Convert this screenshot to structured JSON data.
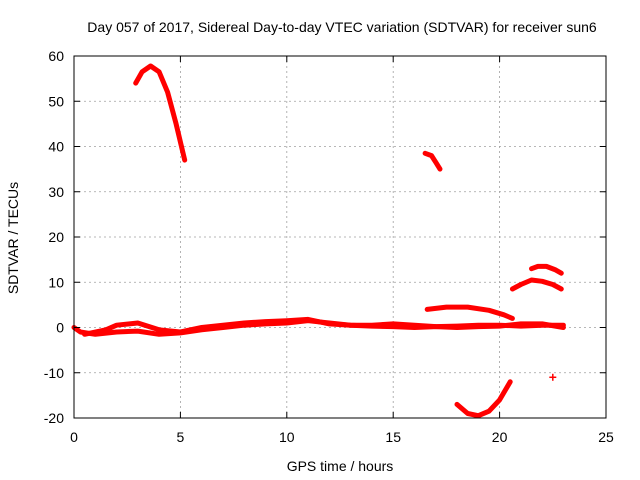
{
  "chart_data": {
    "type": "scatter",
    "title": "Day 057 of 2017, Sidereal Day-to-day VTEC variation (SDTVAR) for receiver sun6",
    "xlabel": "GPS time / hours",
    "ylabel": "SDTVAR / TECUs",
    "xlim": [
      0,
      25
    ],
    "ylim": [
      -20,
      60
    ],
    "xticks": [
      0,
      5,
      10,
      15,
      20,
      25
    ],
    "yticks": [
      -20,
      -10,
      0,
      10,
      20,
      30,
      40,
      50,
      60
    ],
    "grid": true,
    "marker_color": "#ff0000",
    "series": [
      {
        "name": "near-zero-track",
        "points": [
          [
            0,
            0
          ],
          [
            0.3,
            -1
          ],
          [
            1,
            -1.5
          ],
          [
            2,
            -1
          ],
          [
            3,
            -0.8
          ],
          [
            4,
            -1.5
          ],
          [
            5,
            -1.2
          ],
          [
            6,
            -0.5
          ],
          [
            7,
            0
          ],
          [
            8,
            0.5
          ],
          [
            9,
            0.8
          ],
          [
            10,
            1
          ],
          [
            11,
            1.5
          ],
          [
            12,
            1
          ],
          [
            13,
            0.5
          ],
          [
            14,
            0.3
          ],
          [
            15,
            0.2
          ],
          [
            16,
            0
          ],
          [
            17,
            0.2
          ],
          [
            18,
            0.3
          ],
          [
            19,
            0.5
          ],
          [
            20,
            0.5
          ],
          [
            21,
            0.3
          ],
          [
            22,
            0.5
          ],
          [
            23,
            0.5
          ]
        ]
      },
      {
        "name": "secondary-near-zero",
        "points": [
          [
            0.5,
            -1.5
          ],
          [
            1.5,
            -0.5
          ],
          [
            2,
            0.5
          ],
          [
            3,
            1
          ],
          [
            4,
            -0.5
          ],
          [
            5,
            -1
          ],
          [
            6,
            0
          ],
          [
            7,
            0.5
          ],
          [
            8,
            1
          ],
          [
            9,
            1.3
          ],
          [
            10,
            1.5
          ],
          [
            11,
            1.8
          ],
          [
            12,
            0.8
          ],
          [
            13,
            0.5
          ],
          [
            14,
            0.5
          ],
          [
            15,
            0.8
          ],
          [
            16,
            0.5
          ],
          [
            17,
            0.2
          ],
          [
            18,
            0
          ],
          [
            19,
            0.2
          ],
          [
            20,
            0.3
          ],
          [
            21,
            0.8
          ],
          [
            22,
            0.8
          ],
          [
            23,
            0
          ]
        ]
      },
      {
        "name": "arc-3h",
        "points": [
          [
            2.9,
            54
          ],
          [
            3.2,
            56.5
          ],
          [
            3.6,
            57.8
          ],
          [
            4.0,
            56.5
          ],
          [
            4.4,
            52
          ],
          [
            4.8,
            45
          ],
          [
            5.2,
            37
          ]
        ]
      },
      {
        "name": "arc-16h",
        "points": [
          [
            16.5,
            38.5
          ],
          [
            16.8,
            38
          ],
          [
            17.0,
            36.5
          ],
          [
            17.2,
            35
          ]
        ]
      },
      {
        "name": "arc-17h-20h",
        "points": [
          [
            16.6,
            4
          ],
          [
            17.5,
            4.5
          ],
          [
            18.5,
            4.5
          ],
          [
            19.5,
            3.8
          ],
          [
            20.2,
            2.8
          ],
          [
            20.6,
            2
          ]
        ]
      },
      {
        "name": "arc-dip-19h",
        "points": [
          [
            18,
            -17
          ],
          [
            18.5,
            -19
          ],
          [
            19,
            -19.5
          ],
          [
            19.5,
            -18.5
          ],
          [
            20,
            -16
          ],
          [
            20.5,
            -12
          ]
        ]
      },
      {
        "name": "arc-21-23h-lower",
        "points": [
          [
            20.6,
            8.5
          ],
          [
            21,
            9.5
          ],
          [
            21.5,
            10.5
          ],
          [
            22,
            10.2
          ],
          [
            22.5,
            9.5
          ],
          [
            22.9,
            8.5
          ]
        ]
      },
      {
        "name": "arc-21-23h-upper",
        "points": [
          [
            21.5,
            13
          ],
          [
            21.8,
            13.5
          ],
          [
            22.2,
            13.5
          ],
          [
            22.6,
            12.8
          ],
          [
            22.9,
            12
          ]
        ]
      },
      {
        "name": "isolated-point",
        "points": [
          [
            22.5,
            -11
          ]
        ]
      }
    ]
  }
}
